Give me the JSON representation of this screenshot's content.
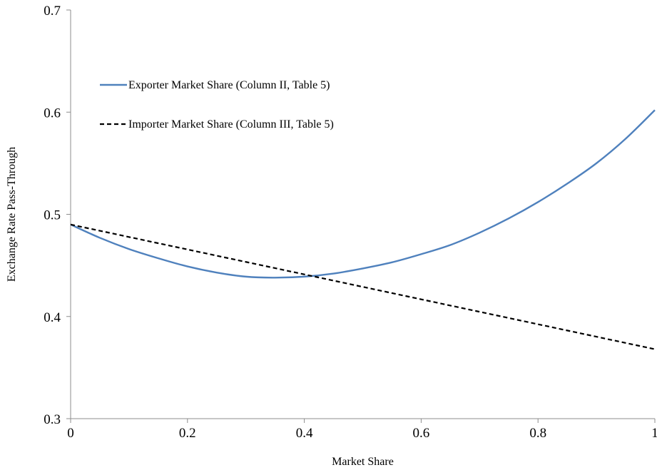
{
  "chart_data": {
    "type": "line",
    "xlabel": "Market Share",
    "ylabel": "Exchange Rate Pass-Through",
    "xlim": [
      0,
      1
    ],
    "ylim": [
      0.3,
      0.7
    ],
    "x_ticks": [
      0,
      0.2,
      0.4,
      0.6,
      0.8,
      1
    ],
    "x_tick_labels": [
      "0",
      "0.2",
      "0.4",
      "0.6",
      "0.8",
      "1"
    ],
    "y_ticks": [
      0.3,
      0.4,
      0.5,
      0.6,
      0.7
    ],
    "y_tick_labels": [
      "0.3",
      "0.4",
      "0.5",
      "0.6",
      "0.7"
    ],
    "grid": false,
    "legend_position": "top-left",
    "series": [
      {
        "name": "Exporter Market Share (Column II, Table 5)",
        "color": "#4f81bd",
        "style": "solid",
        "x": [
          0,
          0.05,
          0.1,
          0.15,
          0.2,
          0.25,
          0.3,
          0.35,
          0.4,
          0.45,
          0.5,
          0.55,
          0.6,
          0.65,
          0.7,
          0.75,
          0.8,
          0.85,
          0.9,
          0.95,
          1
        ],
        "y": [
          0.49,
          0.477,
          0.466,
          0.457,
          0.449,
          0.443,
          0.439,
          0.438,
          0.439,
          0.442,
          0.447,
          0.453,
          0.461,
          0.47,
          0.482,
          0.496,
          0.512,
          0.53,
          0.55,
          0.574,
          0.602
        ]
      },
      {
        "name": "Importer Market Share (Column III, Table 5)",
        "color": "#000000",
        "style": "dashed",
        "x": [
          0,
          1
        ],
        "y": [
          0.49,
          0.368
        ]
      }
    ]
  }
}
